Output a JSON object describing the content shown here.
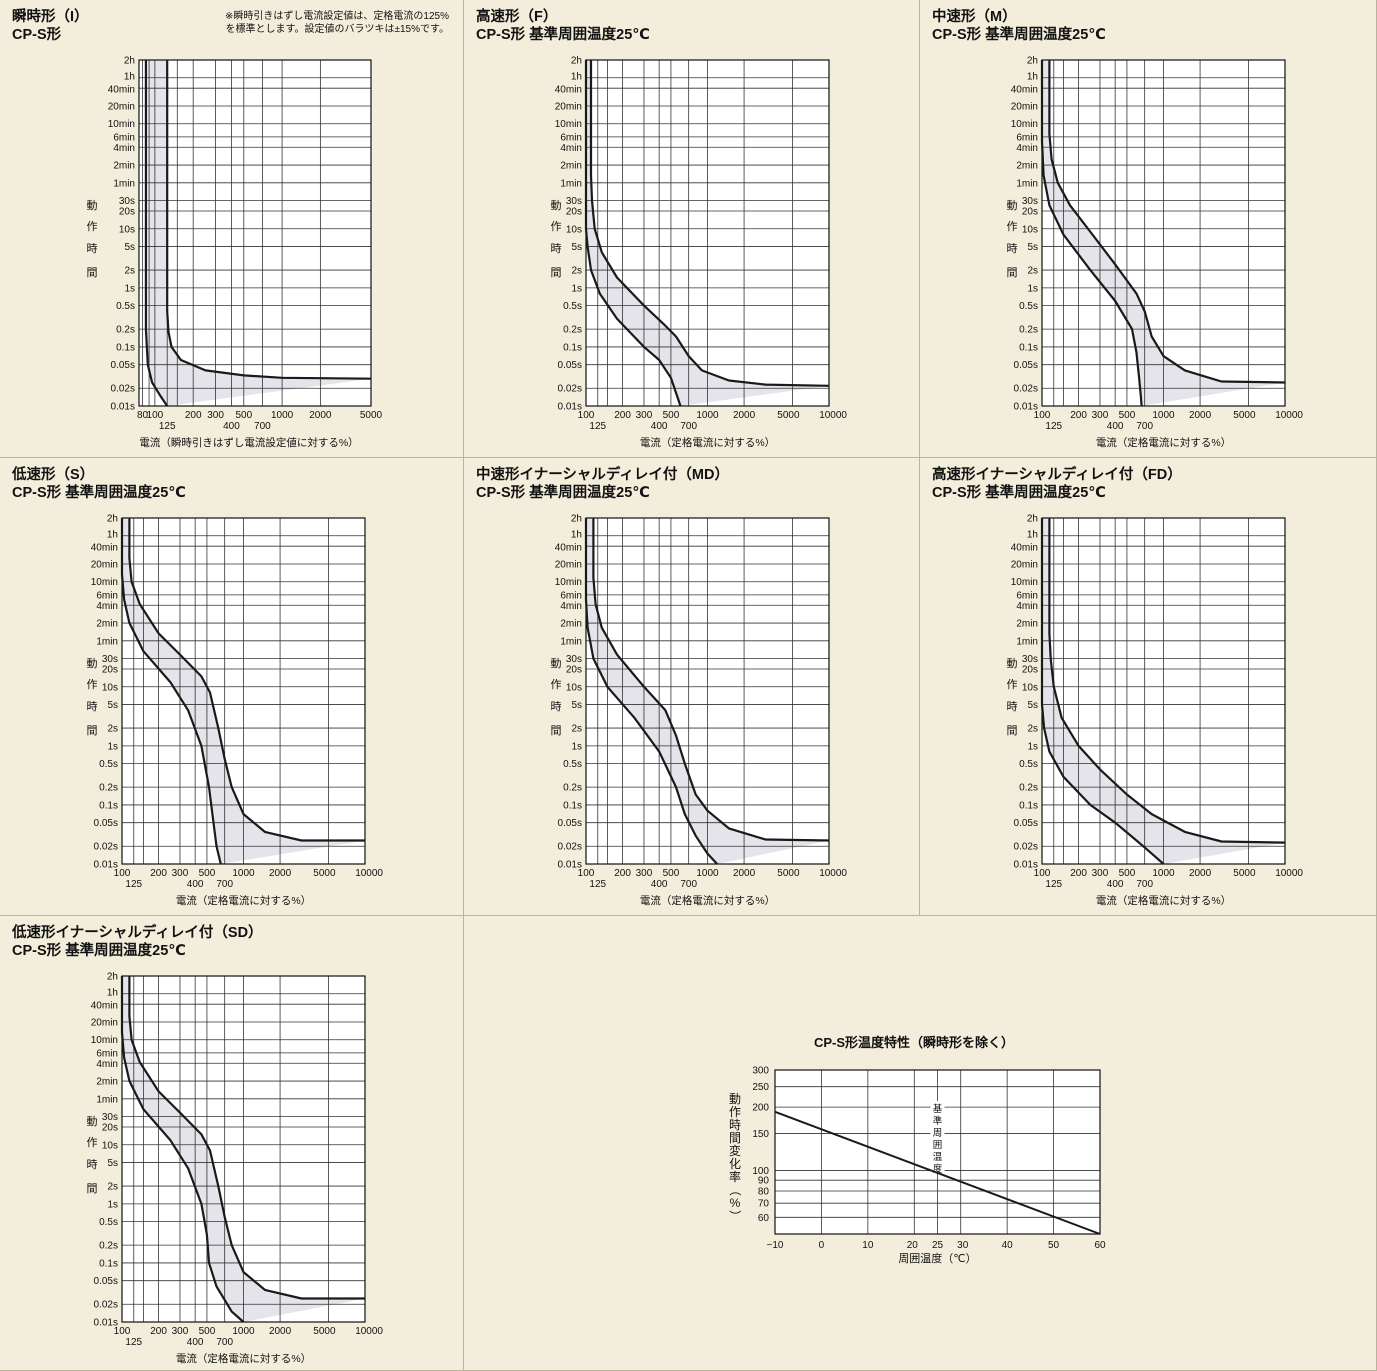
{
  "colors": {
    "background": "#f3eedb",
    "plot_bg": "#ffffff",
    "band_fill": "#e4e4ea",
    "curve": "#1a1a1a",
    "grid": "#333333",
    "divider": "#b9b39c"
  },
  "y_ticks": [
    {
      "label": "2h",
      "v": 7200
    },
    {
      "label": "1h",
      "v": 3600
    },
    {
      "label": "40min",
      "v": 2400
    },
    {
      "label": "20min",
      "v": 1200
    },
    {
      "label": "10min",
      "v": 600
    },
    {
      "label": "6min",
      "v": 360
    },
    {
      "label": "4min",
      "v": 240
    },
    {
      "label": "2min",
      "v": 120
    },
    {
      "label": "1min",
      "v": 60
    },
    {
      "label": "30s",
      "v": 30
    },
    {
      "label": "20s",
      "v": 20
    },
    {
      "label": "10s",
      "v": 10
    },
    {
      "label": "5s",
      "v": 5
    },
    {
      "label": "2s",
      "v": 2
    },
    {
      "label": "1s",
      "v": 1
    },
    {
      "label": "0.5s",
      "v": 0.5
    },
    {
      "label": "0.2s",
      "v": 0.2
    },
    {
      "label": "0.1s",
      "v": 0.1
    },
    {
      "label": "0.05s",
      "v": 0.05
    },
    {
      "label": "0.02s",
      "v": 0.02
    },
    {
      "label": "0.01s",
      "v": 0.01
    }
  ],
  "y_axis_label": [
    "動",
    "作",
    "時",
    "間"
  ],
  "x_label_std": "電流（定格電流に対する%）",
  "x_label_inst": "電流（瞬時引きはずし電流設定値に対する%）",
  "x_ticks_std": {
    "top": [
      {
        "label": "100",
        "v": 100
      },
      {
        "label": "200",
        "v": 200
      },
      {
        "label": "300",
        "v": 300
      },
      {
        "label": "500",
        "v": 500
      },
      {
        "label": "1000",
        "v": 1000
      },
      {
        "label": "2000",
        "v": 2000
      },
      {
        "label": "5000",
        "v": 5000
      },
      {
        "label": "10000",
        "v": 10000
      }
    ],
    "bottom": [
      {
        "label": "125",
        "v": 125
      },
      {
        "label": "400",
        "v": 400
      },
      {
        "label": "700",
        "v": 700
      }
    ]
  },
  "x_ticks_inst": {
    "top": [
      {
        "label": "80",
        "v": 80
      },
      {
        "label": "100",
        "v": 100
      },
      {
        "label": "200",
        "v": 200
      },
      {
        "label": "300",
        "v": 300
      },
      {
        "label": "500",
        "v": 500
      },
      {
        "label": "1000",
        "v": 1000
      },
      {
        "label": "2000",
        "v": 2000
      },
      {
        "label": "5000",
        "v": 5000
      }
    ],
    "bottom": [
      {
        "label": "125",
        "v": 125
      },
      {
        "label": "400",
        "v": 400
      },
      {
        "label": "700",
        "v": 700
      }
    ]
  },
  "chart_data": [
    {
      "type": "area",
      "title": "瞬時形（I）\nCP-S形",
      "note": "※瞬時引きはずし電流設定値は、定格電流の125%\nを標準とします。設定値のバラツキは±15%です。",
      "xscale": "log",
      "yscale": "log",
      "xlim": [
        75,
        5000
      ],
      "ylim": [
        0.01,
        7200
      ],
      "xlabel": "電流（瞬時引きはずし電流設定値に対する%）",
      "ylabel": "動作時間",
      "series": [
        {
          "name": "upper",
          "points": [
            [
              125,
              7200
            ],
            [
              125,
              0.4
            ],
            [
              128,
              0.18
            ],
            [
              135,
              0.1
            ],
            [
              160,
              0.06
            ],
            [
              250,
              0.04
            ],
            [
              500,
              0.033
            ],
            [
              1000,
              0.03
            ],
            [
              5000,
              0.029
            ]
          ]
        },
        {
          "name": "lower",
          "points": [
            [
              85,
              7200
            ],
            [
              85,
              0.2
            ],
            [
              88,
              0.05
            ],
            [
              95,
              0.025
            ],
            [
              110,
              0.015
            ],
            [
              125,
              0.01
            ]
          ]
        }
      ]
    },
    {
      "type": "area",
      "title": "高速形（F）\nCP-S形 基準周囲温度25℃",
      "xscale": "log",
      "yscale": "log",
      "xlim": [
        100,
        10000
      ],
      "ylim": [
        0.01,
        7200
      ],
      "xlabel": "電流（定格電流に対する%）",
      "ylabel": "動作時間",
      "series": [
        {
          "name": "upper",
          "points": [
            [
              110,
              7200
            ],
            [
              110,
              80
            ],
            [
              112,
              30
            ],
            [
              118,
              10
            ],
            [
              135,
              4
            ],
            [
              180,
              1.5
            ],
            [
              300,
              0.5
            ],
            [
              430,
              0.25
            ],
            [
              550,
              0.15
            ],
            [
              700,
              0.07
            ],
            [
              900,
              0.04
            ],
            [
              1500,
              0.027
            ],
            [
              3000,
              0.023
            ],
            [
              10000,
              0.022
            ]
          ]
        },
        {
          "name": "lower",
          "points": [
            [
              100,
              7200
            ],
            [
              100,
              10
            ],
            [
              103,
              5
            ],
            [
              110,
              2
            ],
            [
              130,
              0.8
            ],
            [
              180,
              0.3
            ],
            [
              300,
              0.1
            ],
            [
              400,
              0.06
            ],
            [
              500,
              0.03
            ],
            [
              600,
              0.01
            ]
          ]
        }
      ]
    },
    {
      "type": "area",
      "title": "中速形（M）\nCP-S形 基準周囲温度25℃",
      "xscale": "log",
      "yscale": "log",
      "xlim": [
        100,
        10000
      ],
      "ylim": [
        0.01,
        7200
      ],
      "xlabel": "電流（定格電流に対する%）",
      "ylabel": "動作時間",
      "series": [
        {
          "name": "upper",
          "points": [
            [
              115,
              7200
            ],
            [
              115,
              400
            ],
            [
              120,
              150
            ],
            [
              135,
              60
            ],
            [
              170,
              25
            ],
            [
              260,
              8
            ],
            [
              400,
              2.5
            ],
            [
              600,
              0.8
            ],
            [
              700,
              0.4
            ],
            [
              800,
              0.15
            ],
            [
              1000,
              0.07
            ],
            [
              1500,
              0.04
            ],
            [
              3000,
              0.026
            ],
            [
              10000,
              0.025
            ]
          ]
        },
        {
          "name": "lower",
          "points": [
            [
              100,
              7200
            ],
            [
              100,
              300
            ],
            [
              103,
              80
            ],
            [
              115,
              25
            ],
            [
              150,
              8
            ],
            [
              250,
              2
            ],
            [
              400,
              0.6
            ],
            [
              550,
              0.2
            ],
            [
              600,
              0.08
            ],
            [
              630,
              0.03
            ],
            [
              650,
              0.015
            ],
            [
              660,
              0.01
            ]
          ]
        }
      ]
    },
    {
      "type": "area",
      "title": "低速形（S）\nCP-S形 基準周囲温度25℃",
      "xscale": "log",
      "yscale": "log",
      "xlim": [
        100,
        10000
      ],
      "ylim": [
        0.01,
        7200
      ],
      "xlabel": "電流（定格電流に対する%）",
      "ylabel": "動作時間",
      "series": [
        {
          "name": "upper",
          "points": [
            [
              115,
              7200
            ],
            [
              115,
              1500
            ],
            [
              120,
              600
            ],
            [
              140,
              250
            ],
            [
              200,
              80
            ],
            [
              300,
              35
            ],
            [
              450,
              15
            ],
            [
              530,
              8
            ],
            [
              620,
              2
            ],
            [
              700,
              0.6
            ],
            [
              800,
              0.2
            ],
            [
              1000,
              0.07
            ],
            [
              1500,
              0.035
            ],
            [
              3000,
              0.025
            ],
            [
              10000,
              0.025
            ]
          ]
        },
        {
          "name": "lower",
          "points": [
            [
              100,
              7200
            ],
            [
              100,
              800
            ],
            [
              104,
              300
            ],
            [
              115,
              120
            ],
            [
              150,
              40
            ],
            [
              250,
              12
            ],
            [
              350,
              4
            ],
            [
              450,
              1
            ],
            [
              520,
              0.2
            ],
            [
              560,
              0.06
            ],
            [
              600,
              0.02
            ],
            [
              650,
              0.01
            ]
          ]
        }
      ]
    },
    {
      "type": "area",
      "title": "中速形イナーシャルディレイ付（MD）\nCP-S形 基準周囲温度25℃",
      "xscale": "log",
      "yscale": "log",
      "xlim": [
        100,
        10000
      ],
      "ylim": [
        0.01,
        7200
      ],
      "xlabel": "電流（定格電流に対する%）",
      "ylabel": "動作時間",
      "series": [
        {
          "name": "upper",
          "points": [
            [
              115,
              7200
            ],
            [
              115,
              700
            ],
            [
              120,
              250
            ],
            [
              135,
              100
            ],
            [
              180,
              35
            ],
            [
              300,
              10
            ],
            [
              450,
              4
            ],
            [
              550,
              1.5
            ],
            [
              650,
              0.5
            ],
            [
              800,
              0.15
            ],
            [
              1000,
              0.08
            ],
            [
              1500,
              0.04
            ],
            [
              3000,
              0.026
            ],
            [
              10000,
              0.025
            ]
          ]
        },
        {
          "name": "lower",
          "points": [
            [
              100,
              7200
            ],
            [
              100,
              300
            ],
            [
              103,
              100
            ],
            [
              115,
              30
            ],
            [
              150,
              10
            ],
            [
              250,
              3
            ],
            [
              400,
              0.8
            ],
            [
              550,
              0.2
            ],
            [
              650,
              0.07
            ],
            [
              800,
              0.03
            ],
            [
              1000,
              0.015
            ],
            [
              1200,
              0.01
            ]
          ]
        }
      ]
    },
    {
      "type": "area",
      "title": "高速形イナーシャルディレイ付（FD）\nCP-S形 基準周囲温度25℃",
      "xscale": "log",
      "yscale": "log",
      "xlim": [
        100,
        10000
      ],
      "ylim": [
        0.01,
        7200
      ],
      "xlabel": "電流（定格電流に対する%）",
      "ylabel": "動作時間",
      "series": [
        {
          "name": "upper",
          "points": [
            [
              115,
              7200
            ],
            [
              115,
              80
            ],
            [
              118,
              30
            ],
            [
              125,
              10
            ],
            [
              145,
              3
            ],
            [
              200,
              1
            ],
            [
              300,
              0.4
            ],
            [
              500,
              0.15
            ],
            [
              800,
              0.07
            ],
            [
              1500,
              0.035
            ],
            [
              3000,
              0.024
            ],
            [
              10000,
              0.023
            ]
          ]
        },
        {
          "name": "lower",
          "points": [
            [
              100,
              7200
            ],
            [
              100,
              5
            ],
            [
              104,
              2
            ],
            [
              115,
              0.8
            ],
            [
              150,
              0.3
            ],
            [
              250,
              0.1
            ],
            [
              400,
              0.05
            ],
            [
              600,
              0.025
            ],
            [
              800,
              0.015
            ],
            [
              1000,
              0.01
            ]
          ]
        }
      ]
    },
    {
      "type": "area",
      "title": "低速形イナーシャルディレイ付（SD）\nCP-S形 基準周囲温度25℃",
      "xscale": "log",
      "yscale": "log",
      "xlim": [
        100,
        10000
      ],
      "ylim": [
        0.01,
        7200
      ],
      "xlabel": "電流（定格電流に対する%）",
      "ylabel": "動作時間",
      "series": [
        {
          "name": "upper",
          "points": [
            [
              115,
              7200
            ],
            [
              115,
              1500
            ],
            [
              120,
              600
            ],
            [
              140,
              250
            ],
            [
              200,
              80
            ],
            [
              300,
              35
            ],
            [
              450,
              15
            ],
            [
              530,
              8
            ],
            [
              620,
              2
            ],
            [
              700,
              0.6
            ],
            [
              800,
              0.2
            ],
            [
              1000,
              0.07
            ],
            [
              1500,
              0.035
            ],
            [
              3000,
              0.025
            ],
            [
              10000,
              0.025
            ]
          ]
        },
        {
          "name": "lower",
          "points": [
            [
              100,
              7200
            ],
            [
              100,
              800
            ],
            [
              104,
              300
            ],
            [
              115,
              120
            ],
            [
              150,
              40
            ],
            [
              250,
              12
            ],
            [
              350,
              4
            ],
            [
              450,
              1
            ],
            [
              500,
              0.3
            ],
            [
              520,
              0.1
            ],
            [
              600,
              0.04
            ],
            [
              800,
              0.015
            ],
            [
              1000,
              0.01
            ]
          ]
        }
      ]
    },
    {
      "type": "line",
      "title": "CP-S形温度特性（瞬時形を除く）",
      "xlabel": "周囲温度（℃）",
      "ylabel": "動作時間変化率（%）",
      "annotation": "基準周囲温度",
      "xlim": [
        -10,
        60
      ],
      "ylim": [
        50,
        300
      ],
      "yscale": "log",
      "x_ticks": [
        {
          "label": "−10",
          "v": -10
        },
        {
          "label": "0",
          "v": 0
        },
        {
          "label": "10",
          "v": 10
        },
        {
          "label": "20",
          "v": 20
        },
        {
          "label": "25",
          "v": 25
        },
        {
          "label": "30",
          "v": 30
        },
        {
          "label": "40",
          "v": 40
        },
        {
          "label": "50",
          "v": 50
        },
        {
          "label": "60",
          "v": 60
        }
      ],
      "y_ticks": [
        {
          "label": "300",
          "v": 300
        },
        {
          "label": "250",
          "v": 250
        },
        {
          "label": "200",
          "v": 200
        },
        {
          "label": "150",
          "v": 150
        },
        {
          "label": "100",
          "v": 100
        },
        {
          "label": "90",
          "v": 90
        },
        {
          "label": "80",
          "v": 80
        },
        {
          "label": "70",
          "v": 70
        },
        {
          "label": "60",
          "v": 60
        }
      ],
      "series": [
        {
          "points": [
            [
              -10,
              190
            ],
            [
              60,
              50
            ]
          ]
        }
      ]
    }
  ]
}
